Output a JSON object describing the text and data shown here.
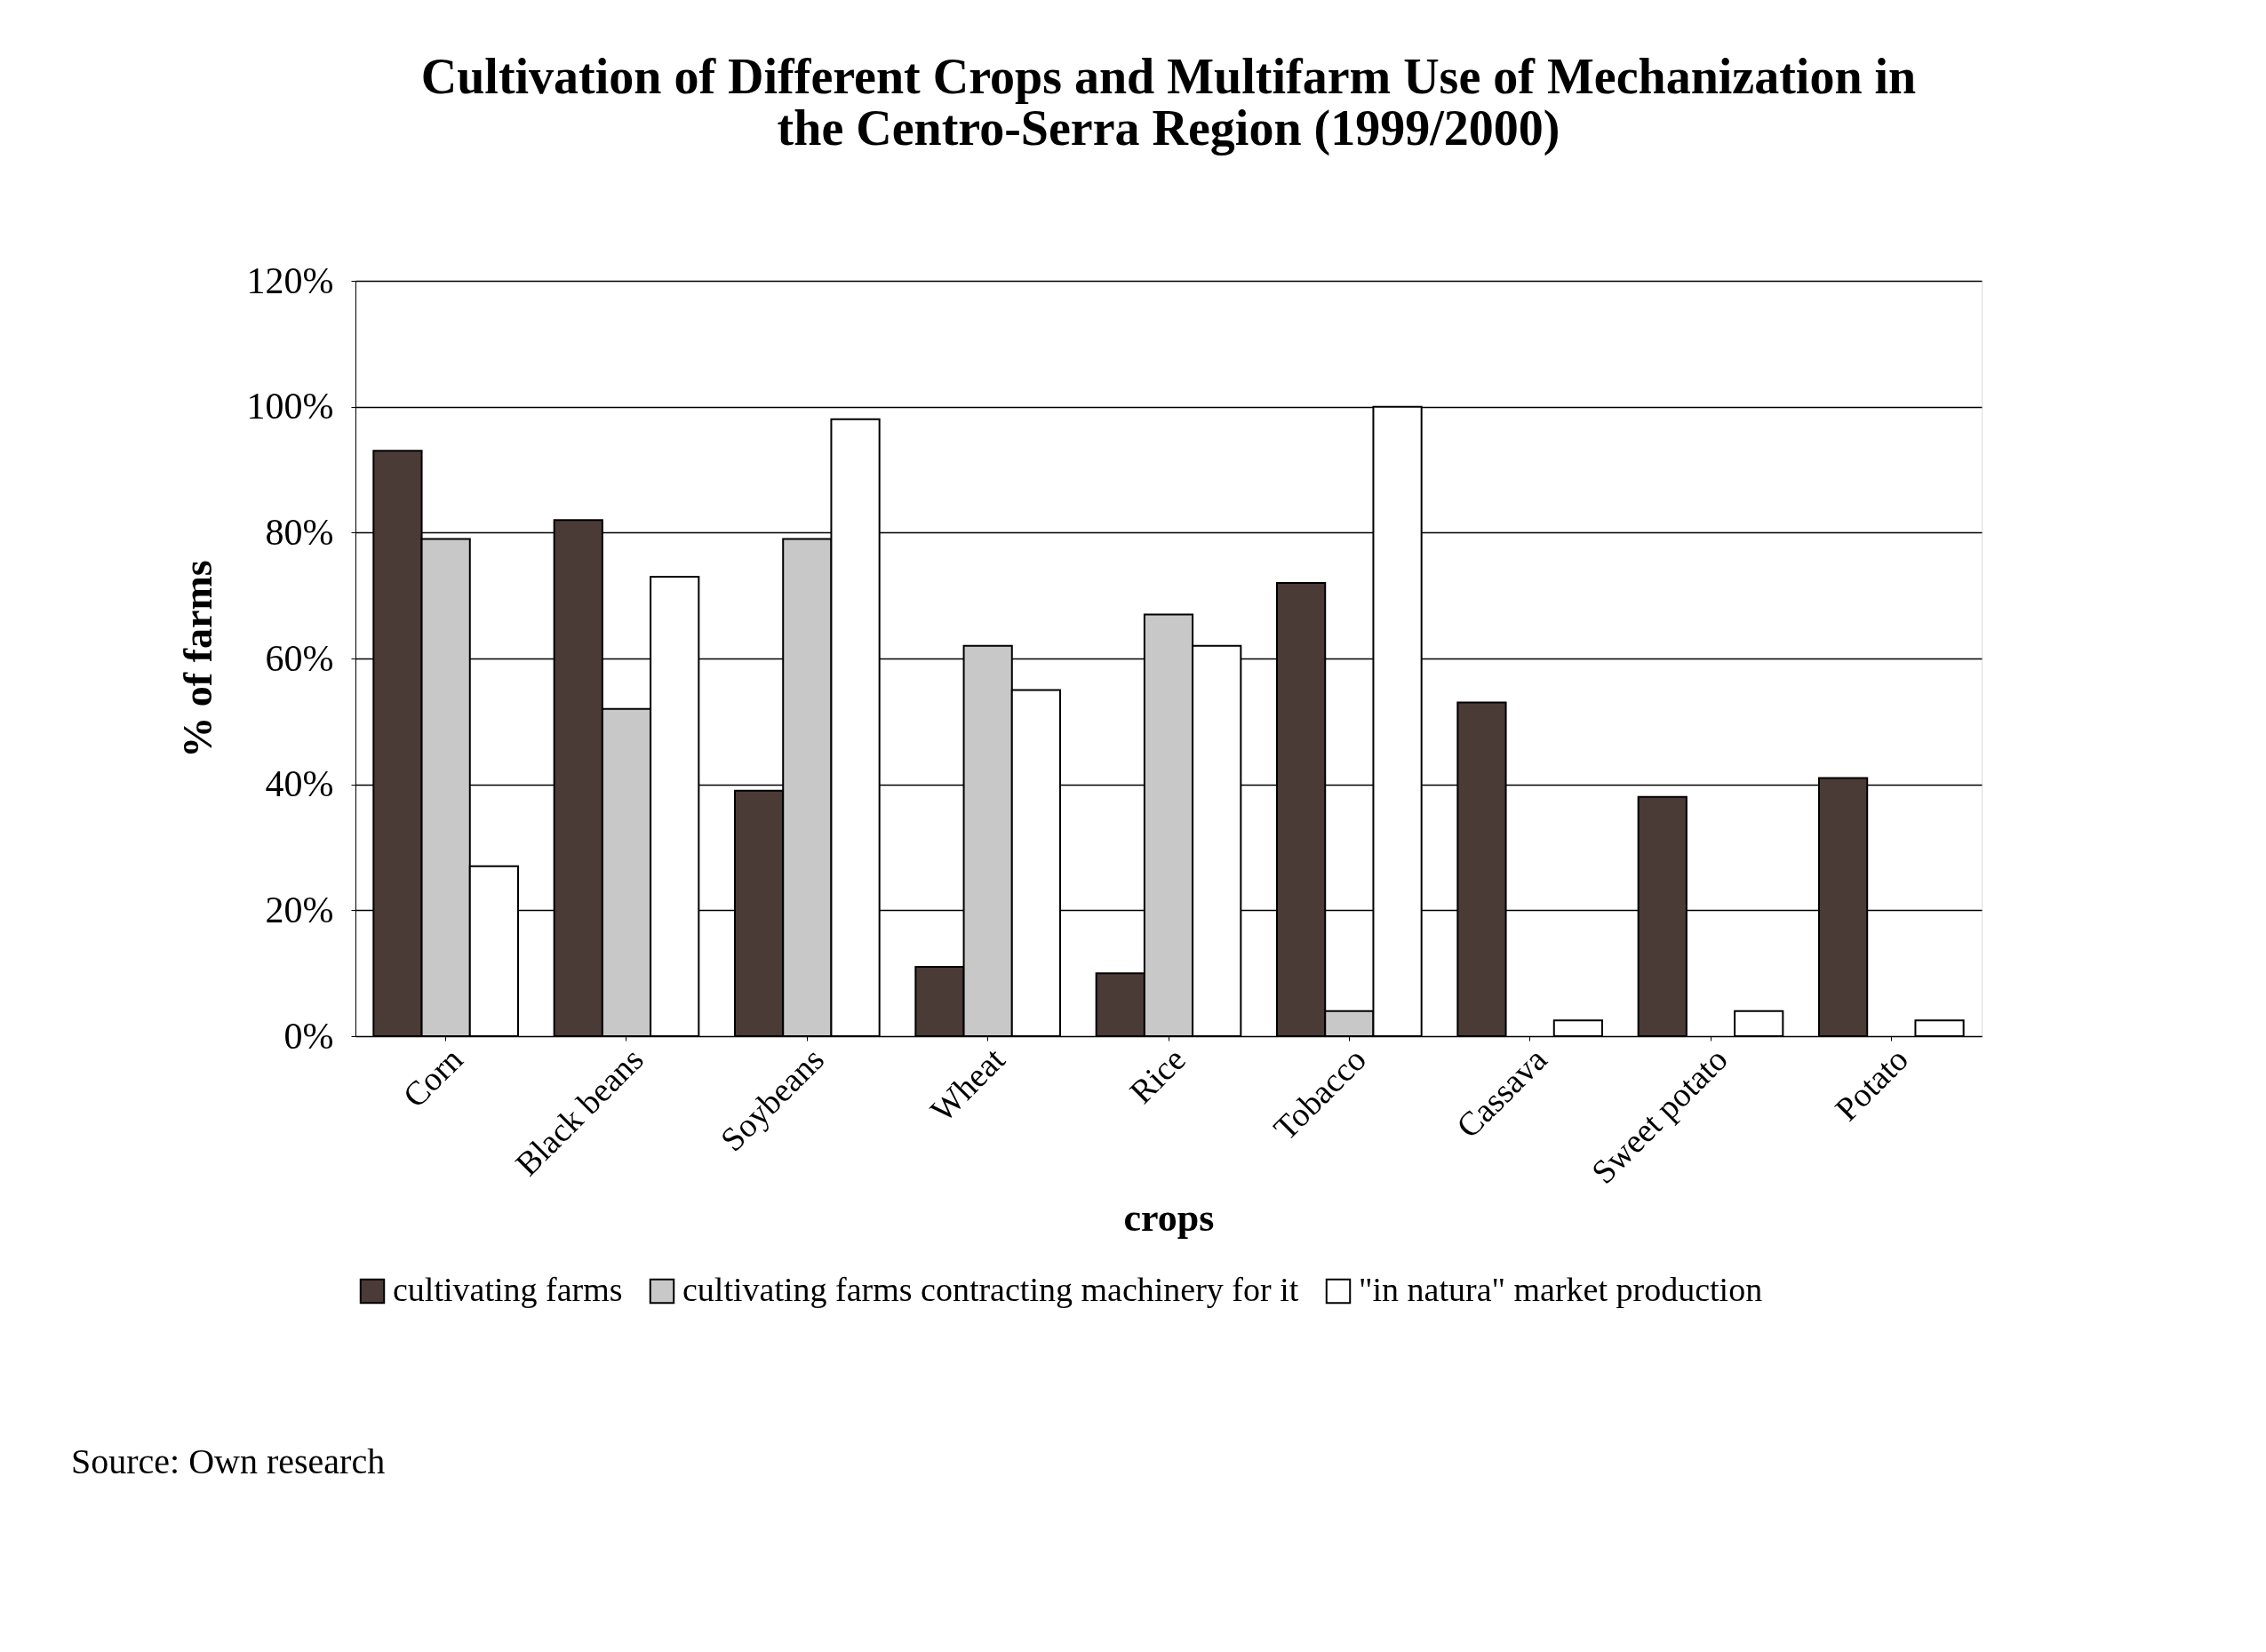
{
  "chart_data": {
    "type": "bar",
    "title": [
      "Cultivation of Different Crops and Multifarm Use of Mechanization in",
      "the Centro-Serra Region (1999/2000)"
    ],
    "xlabel": "crops",
    "ylabel": "% of farms",
    "categories": [
      "Corn",
      "Black beans",
      "Soybeans",
      "Wheat",
      "Rice",
      "Tobacco",
      "Cassava",
      "Sweet potato",
      "Potato"
    ],
    "series": [
      {
        "name": "cultivating farms",
        "color": "#4a3b37",
        "values": [
          93,
          82,
          39,
          11,
          10,
          72,
          53,
          38,
          41
        ]
      },
      {
        "name": "cultivating farms contracting machinery for it",
        "color": "#c8c8c8",
        "values": [
          79,
          52,
          79,
          62,
          67,
          4,
          0,
          0,
          0
        ]
      },
      {
        "name": "\"in natura\" market production",
        "color": "#ffffff",
        "values": [
          27,
          73,
          98,
          55,
          62,
          100,
          2.5,
          4,
          2.5
        ]
      }
    ],
    "ylim": [
      0,
      120
    ],
    "yticks": [
      {
        "value": 0,
        "label": "0%"
      },
      {
        "value": 20,
        "label": "20%"
      },
      {
        "value": 40,
        "label": "40%"
      },
      {
        "value": 60,
        "label": "60%"
      },
      {
        "value": 80,
        "label": "80%"
      },
      {
        "value": 100,
        "label": "100%"
      },
      {
        "value": 120,
        "label": "120%"
      }
    ],
    "grid": "y",
    "legend": "bottom",
    "annotations": [
      "Source: Own research"
    ]
  }
}
